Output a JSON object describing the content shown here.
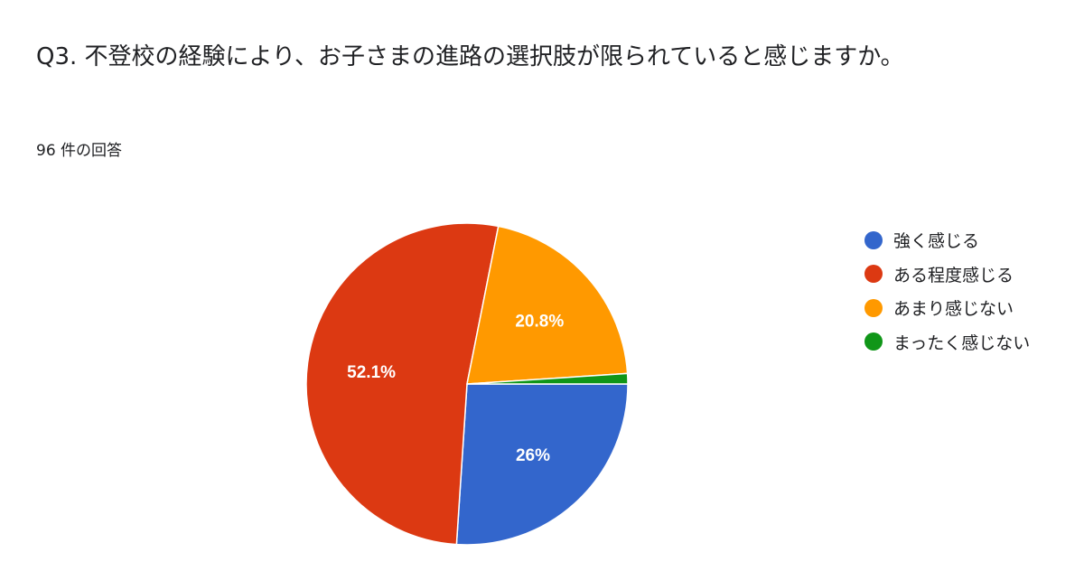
{
  "title": "Q3. 不登校の経験により、お子さまの進路の選択肢が限られていると感じますか。",
  "response_count": "96 件の回答",
  "chart_data": {
    "type": "pie",
    "categories": [
      "強く感じる",
      "ある程度感じる",
      "あまり感じない",
      "まったく感じない"
    ],
    "values": [
      25,
      50,
      20,
      1
    ],
    "labels": [
      "26%",
      "52.1%",
      "20.8%",
      ""
    ],
    "colors": [
      "#3366cc",
      "#dc3912",
      "#ff9900",
      "#109618"
    ],
    "legend_position": "right"
  }
}
